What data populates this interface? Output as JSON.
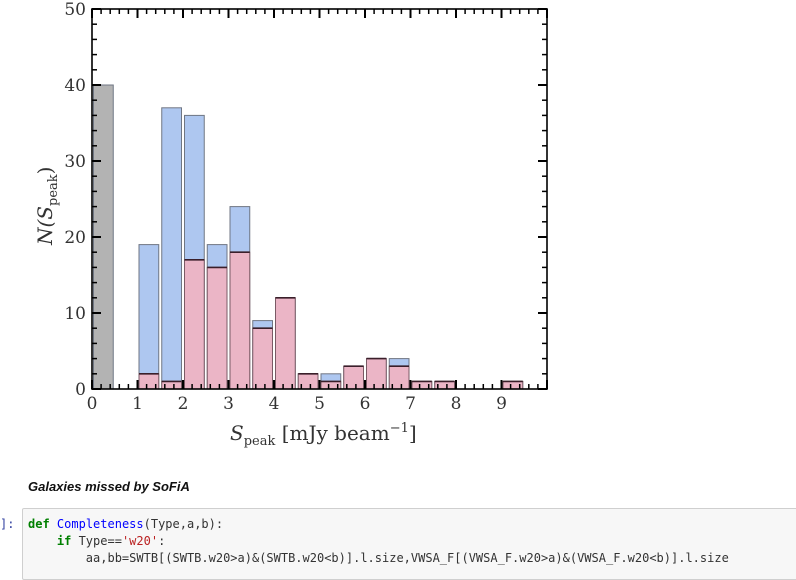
{
  "chart_data": {
    "type": "bar",
    "stacked": "overlay",
    "xlabel": "S_peak [mJy beam^-1]",
    "ylabel": "N(S_peak)",
    "xlim": [
      0,
      10
    ],
    "ylim": [
      0,
      50
    ],
    "xticks": [
      0,
      1,
      2,
      3,
      4,
      5,
      6,
      7,
      8,
      9
    ],
    "yticks": [
      0,
      10,
      20,
      30,
      40,
      50
    ],
    "bin_width": 0.5,
    "bins": [
      0,
      0.5,
      1,
      1.5,
      2,
      2.5,
      3,
      3.5,
      4,
      4.5,
      5,
      5.5,
      6,
      6.5,
      7,
      7.5,
      8,
      8.5,
      9,
      9.5
    ],
    "series": [
      {
        "name": "gray",
        "color": "#b3b3b3",
        "values": [
          40,
          0,
          0,
          0,
          0,
          0,
          0,
          0,
          0,
          0,
          0,
          0,
          0,
          0,
          0,
          0,
          0,
          0,
          0,
          0
        ]
      },
      {
        "name": "blue",
        "color": "#aec7f0",
        "values": [
          0,
          0,
          19,
          37,
          36,
          19,
          24,
          9,
          12,
          2,
          2,
          3,
          4,
          4,
          1,
          1,
          0,
          0,
          1,
          0
        ]
      },
      {
        "name": "pink",
        "color": "#ebb5c6",
        "values": [
          0,
          0,
          2,
          1,
          17,
          16,
          18,
          8,
          12,
          2,
          1,
          3,
          4,
          3,
          1,
          1,
          0,
          0,
          1,
          0
        ]
      }
    ],
    "grid": false,
    "legend": null
  },
  "labels": {
    "ylabel_main": "N(S",
    "ylabel_sub": "peak",
    "ylabel_end": ")",
    "xlabel_main": "S",
    "xlabel_sub": "peak",
    "xlabel_rest": " [mJy beam",
    "xlabel_sup": "−1",
    "xlabel_end": "]"
  },
  "notebook": {
    "markdown_heading": "Galaxies missed by SoFiA",
    "prompt": "]:",
    "code_lines": [
      "def Completeness(Type,a,b):",
      "    if Type=='w20':",
      "        aa,bb=SWTB[(SWTB.w20>a)&(SWTB.w20<b)].l.size,VWSA_F[(VWSA_F.w20>a)&(VWSA_F.w20<b)].l.size"
    ]
  }
}
